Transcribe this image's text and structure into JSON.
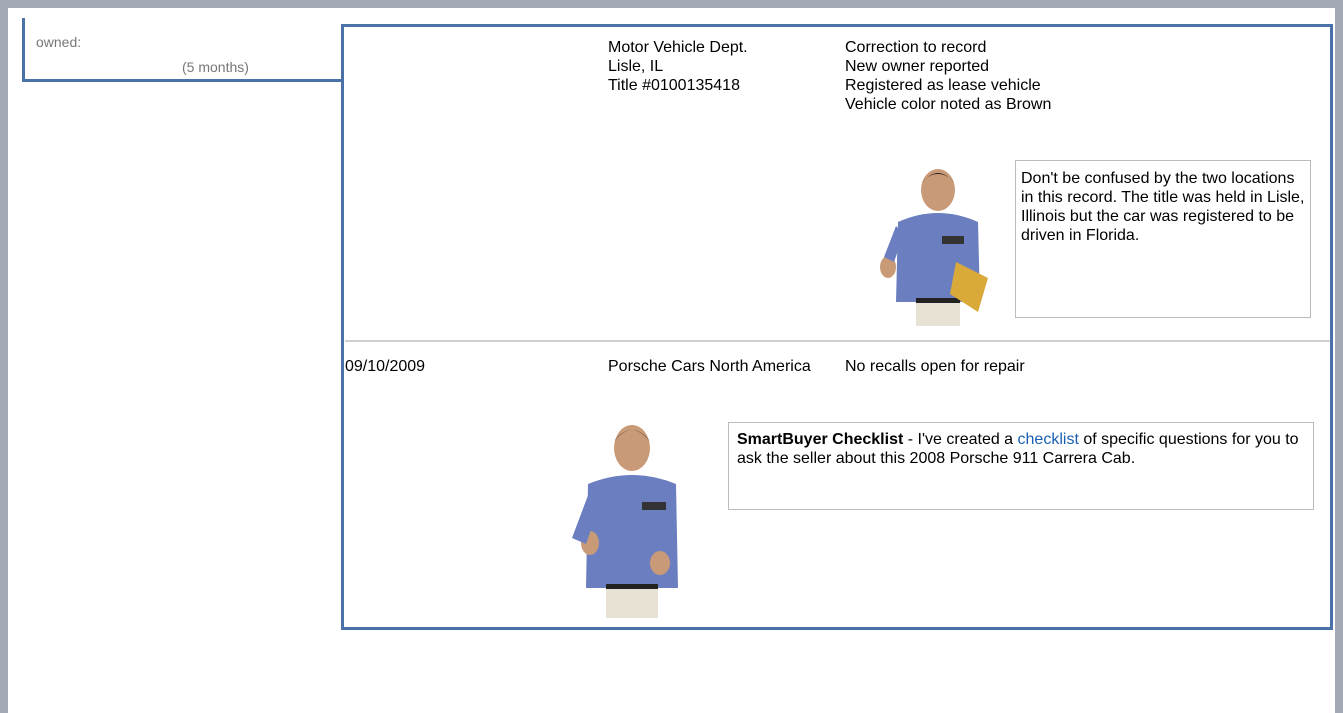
{
  "left": {
    "label": "owned:",
    "duration": "(5 months)"
  },
  "records": [
    {
      "source": [
        "Motor Vehicle Dept.",
        "Lisle, IL",
        "Title #0100135418"
      ],
      "details": [
        "Correction to record",
        "New owner reported",
        "Registered as lease vehicle",
        "Vehicle color noted as Brown"
      ],
      "note": "Don't be confused by the two locations in this record. The title was held in Lisle, Illinois but the car was registered to be driven in Florida."
    },
    {
      "date": "09/10/2009",
      "source": [
        "Porsche Cars North America"
      ],
      "details": [
        "No recalls open for repair"
      ],
      "note": {
        "bold": "SmartBuyer Checklist",
        "before": "- I've created a",
        "link": "checklist",
        "after": "of specific questions for you to ask the seller about this 2008 Porsche 911 Carrera Cab."
      }
    }
  ]
}
